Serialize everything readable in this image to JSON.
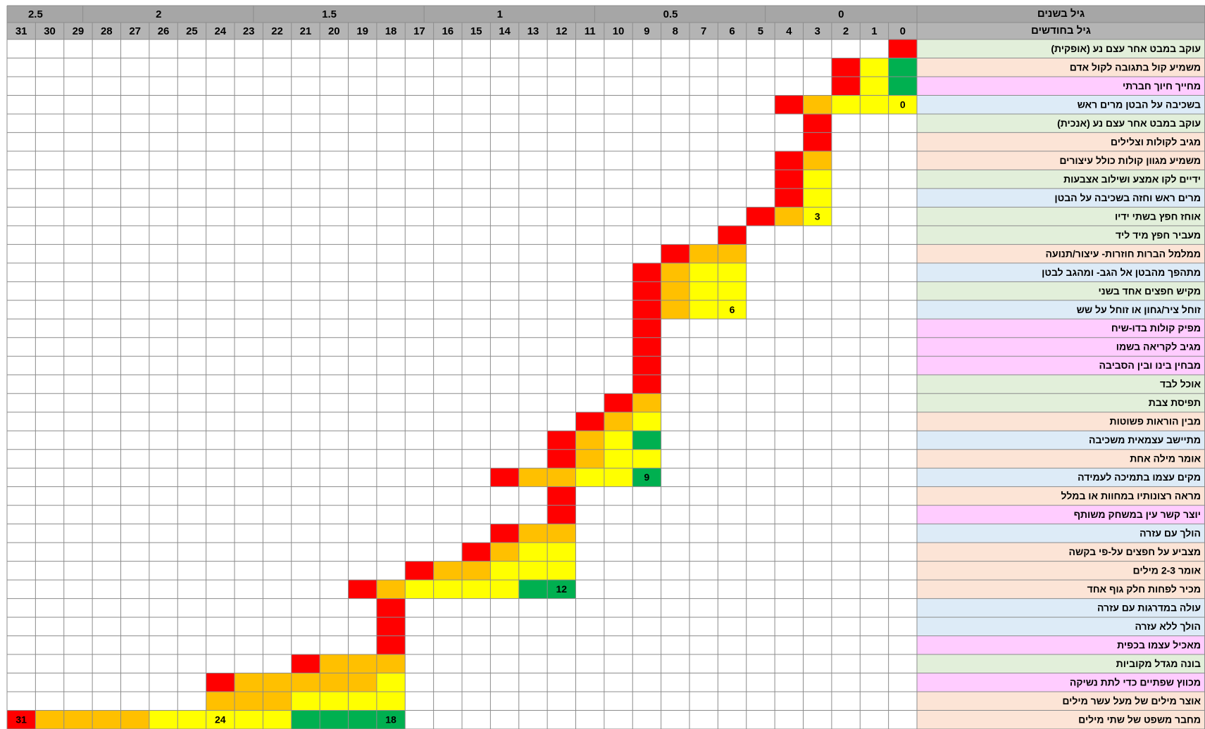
{
  "table": {
    "year_header": "גיל בשנים",
    "month_header": "גיל בחודשים",
    "years": [
      0,
      0.5,
      1,
      1.5,
      2,
      2.5
    ],
    "months": [
      0,
      1,
      2,
      3,
      4,
      5,
      6,
      7,
      8,
      9,
      10,
      11,
      12,
      13,
      14,
      15,
      16,
      17,
      18,
      19,
      20,
      21,
      22,
      23,
      24,
      25,
      26,
      27,
      28,
      29,
      30,
      31
    ],
    "header_color": "#a6a6a6",
    "subheader_color": "#b4b4b4",
    "rows": [
      {
        "label": "עוקב במבט אחר עצם נע (אופקית)",
        "color": "#e2efda",
        "cells": [
          {
            "month": 0,
            "color": "#ff0000"
          }
        ]
      },
      {
        "label": "משמיע קול בתגובה לקול אדם",
        "color": "#fce4d6",
        "cells": [
          {
            "month": 2,
            "color": "#ff0000"
          },
          {
            "month": 1,
            "color": "#ffff00"
          },
          {
            "month": 0,
            "color": "#00b050"
          }
        ]
      },
      {
        "label": "מחייך חיוך חברתי",
        "color": "#ffccff",
        "cells": [
          {
            "month": 2,
            "color": "#ff0000"
          },
          {
            "month": 1,
            "color": "#ffff00"
          },
          {
            "month": 0,
            "color": "#00b050"
          }
        ]
      },
      {
        "label": "בשכיבה על הבטן מרים ראש",
        "color": "#ddebf7",
        "cells": [
          {
            "month": 4,
            "color": "#ff0000"
          },
          {
            "month": 3,
            "color": "#ffc000"
          },
          {
            "month": 2,
            "color": "#ffff00"
          },
          {
            "month": 1,
            "color": "#ffff00"
          },
          {
            "month": 0,
            "color": "#ffff00",
            "label": "0"
          }
        ]
      },
      {
        "label": "עוקב במבט אחר עצם נע (אנכית)",
        "color": "#e2efda",
        "cells": [
          {
            "month": 3,
            "color": "#ff0000"
          }
        ]
      },
      {
        "label": "מגיב לקולות וצלילים",
        "color": "#fce4d6",
        "cells": [
          {
            "month": 3,
            "color": "#ff0000"
          }
        ]
      },
      {
        "label": "משמיע מגוון קולות כולל עיצורים",
        "color": "#fce4d6",
        "cells": [
          {
            "month": 4,
            "color": "#ff0000"
          },
          {
            "month": 3,
            "color": "#ffc000"
          }
        ]
      },
      {
        "label": "ידיים לקו אמצע ושילוב אצבעות",
        "color": "#e2efda",
        "cells": [
          {
            "month": 4,
            "color": "#ff0000"
          },
          {
            "month": 3,
            "color": "#ffff00"
          }
        ]
      },
      {
        "label": "מרים ראש וחזה בשכיבה על הבטן",
        "color": "#ddebf7",
        "cells": [
          {
            "month": 4,
            "color": "#ff0000"
          },
          {
            "month": 3,
            "color": "#ffff00"
          }
        ]
      },
      {
        "label": "אוחז חפץ בשתי ידיו",
        "color": "#e2efda",
        "cells": [
          {
            "month": 5,
            "color": "#ff0000"
          },
          {
            "month": 4,
            "color": "#ffc000"
          },
          {
            "month": 3,
            "color": "#ffff00",
            "label": "3"
          }
        ]
      },
      {
        "label": "מעביר חפץ מיד ליד",
        "color": "#e2efda",
        "cells": [
          {
            "month": 6,
            "color": "#ff0000"
          }
        ]
      },
      {
        "label": "ממלמל הברות חוזרות- עיצור/תנועה",
        "color": "#fce4d6",
        "cells": [
          {
            "month": 8,
            "color": "#ff0000"
          },
          {
            "month": 7,
            "color": "#ffc000"
          },
          {
            "month": 6,
            "color": "#ffc000"
          }
        ]
      },
      {
        "label": "מתהפך מהבטן אל הגב- ומהגב לבטן",
        "color": "#ddebf7",
        "cells": [
          {
            "month": 9,
            "color": "#ff0000"
          },
          {
            "month": 8,
            "color": "#ffc000"
          },
          {
            "month": 7,
            "color": "#ffff00"
          },
          {
            "month": 6,
            "color": "#ffff00"
          }
        ]
      },
      {
        "label": "מקיש חפצים אחד בשני",
        "color": "#e2efda",
        "cells": [
          {
            "month": 9,
            "color": "#ff0000"
          },
          {
            "month": 8,
            "color": "#ffc000"
          },
          {
            "month": 7,
            "color": "#ffff00"
          },
          {
            "month": 6,
            "color": "#ffff00"
          }
        ]
      },
      {
        "label": "זוחל ציר/גחון או זוחל על שש",
        "color": "#ddebf7",
        "cells": [
          {
            "month": 9,
            "color": "#ff0000"
          },
          {
            "month": 8,
            "color": "#ffc000"
          },
          {
            "month": 7,
            "color": "#ffff00"
          },
          {
            "month": 6,
            "color": "#ffff00",
            "label": "6"
          }
        ]
      },
      {
        "label": "מפיק קולות בדו-שיח",
        "color": "#ffccff",
        "cells": [
          {
            "month": 9,
            "color": "#ff0000"
          }
        ]
      },
      {
        "label": "מגיב לקריאה בשמו",
        "color": "#ffccff",
        "cells": [
          {
            "month": 9,
            "color": "#ff0000"
          }
        ]
      },
      {
        "label": "מבחין בינו ובין הסביבה",
        "color": "#ffccff",
        "cells": [
          {
            "month": 9,
            "color": "#ff0000"
          }
        ]
      },
      {
        "label": "אוכל לבד",
        "color": "#e2efda",
        "cells": [
          {
            "month": 9,
            "color": "#ff0000"
          }
        ]
      },
      {
        "label": "תפיסת צבת",
        "color": "#e2efda",
        "cells": [
          {
            "month": 10,
            "color": "#ff0000"
          },
          {
            "month": 9,
            "color": "#ffc000"
          }
        ]
      },
      {
        "label": "מבין הוראות פשוטות",
        "color": "#fce4d6",
        "cells": [
          {
            "month": 11,
            "color": "#ff0000"
          },
          {
            "month": 10,
            "color": "#ffc000"
          },
          {
            "month": 9,
            "color": "#ffff00"
          }
        ]
      },
      {
        "label": "מתיישב עצמאית משכיבה",
        "color": "#ddebf7",
        "cells": [
          {
            "month": 12,
            "color": "#ff0000"
          },
          {
            "month": 11,
            "color": "#ffc000"
          },
          {
            "month": 10,
            "color": "#ffff00"
          },
          {
            "month": 9,
            "color": "#00b050"
          }
        ]
      },
      {
        "label": "אומר מילה אחת",
        "color": "#fce4d6",
        "cells": [
          {
            "month": 12,
            "color": "#ff0000"
          },
          {
            "month": 11,
            "color": "#ffc000"
          },
          {
            "month": 10,
            "color": "#ffff00"
          },
          {
            "month": 9,
            "color": "#ffff00"
          }
        ]
      },
      {
        "label": "מקים עצמו בתמיכה לעמידה",
        "color": "#ddebf7",
        "cells": [
          {
            "month": 14,
            "color": "#ff0000"
          },
          {
            "month": 13,
            "color": "#ffc000"
          },
          {
            "month": 12,
            "color": "#ffc000"
          },
          {
            "month": 11,
            "color": "#ffff00"
          },
          {
            "month": 10,
            "color": "#ffff00"
          },
          {
            "month": 9,
            "color": "#00b050",
            "label": "9"
          }
        ]
      },
      {
        "label": "מראה רצונותיו במחוות או במלל",
        "color": "#fce4d6",
        "cells": [
          {
            "month": 12,
            "color": "#ff0000"
          }
        ]
      },
      {
        "label": "יוצר קשר עין במשחק משותף",
        "color": "#ffccff",
        "cells": [
          {
            "month": 12,
            "color": "#ff0000"
          }
        ]
      },
      {
        "label": "הולך עם עזרה",
        "color": "#ddebf7",
        "cells": [
          {
            "month": 14,
            "color": "#ff0000"
          },
          {
            "month": 13,
            "color": "#ffc000"
          },
          {
            "month": 12,
            "color": "#ffc000"
          }
        ]
      },
      {
        "label": "מצביע על חפצים על-פי בקשה",
        "color": "#fce4d6",
        "cells": [
          {
            "month": 15,
            "color": "#ff0000"
          },
          {
            "month": 14,
            "color": "#ffc000"
          },
          {
            "month": 13,
            "color": "#ffff00"
          },
          {
            "month": 12,
            "color": "#ffff00"
          }
        ]
      },
      {
        "label": "אומר 2-3 מילים",
        "color": "#fce4d6",
        "cells": [
          {
            "month": 17,
            "color": "#ff0000"
          },
          {
            "month": 16,
            "color": "#ffc000"
          },
          {
            "month": 15,
            "color": "#ffc000"
          },
          {
            "month": 14,
            "color": "#ffff00"
          },
          {
            "month": 13,
            "color": "#ffff00"
          },
          {
            "month": 12,
            "color": "#ffff00"
          }
        ]
      },
      {
        "label": "מכיר לפחות חלק גוף אחד",
        "color": "#fce4d6",
        "cells": [
          {
            "month": 19,
            "color": "#ff0000"
          },
          {
            "month": 18,
            "color": "#ffc000"
          },
          {
            "month": 17,
            "color": "#ffff00"
          },
          {
            "month": 16,
            "color": "#ffff00"
          },
          {
            "month": 15,
            "color": "#ffff00"
          },
          {
            "month": 14,
            "color": "#ffff00"
          },
          {
            "month": 13,
            "color": "#00b050"
          },
          {
            "month": 12,
            "color": "#00b050",
            "label": "12"
          }
        ]
      },
      {
        "label": "עולה במדרגות עם עזרה",
        "color": "#ddebf7",
        "cells": [
          {
            "month": 18,
            "color": "#ff0000"
          }
        ]
      },
      {
        "label": "הולך ללא עזרה",
        "color": "#ddebf7",
        "cells": [
          {
            "month": 18,
            "color": "#ff0000"
          }
        ]
      },
      {
        "label": "מאכיל עצמו בכפית",
        "color": "#ffccff",
        "cells": [
          {
            "month": 18,
            "color": "#ff0000"
          }
        ]
      },
      {
        "label": "בונה מגדל מקוביות",
        "color": "#e2efda",
        "cells": [
          {
            "month": 21,
            "color": "#ff0000"
          },
          {
            "month": 20,
            "color": "#ffc000"
          },
          {
            "month": 19,
            "color": "#ffc000"
          },
          {
            "month": 18,
            "color": "#ffc000"
          }
        ]
      },
      {
        "label": "מכווץ שפתיים כדי לתת נשיקה",
        "color": "#ffccff",
        "cells": [
          {
            "month": 24,
            "color": "#ff0000"
          },
          {
            "month": 23,
            "color": "#ffc000"
          },
          {
            "month": 22,
            "color": "#ffc000"
          },
          {
            "month": 21,
            "color": "#ffc000"
          },
          {
            "month": 20,
            "color": "#ffc000"
          },
          {
            "month": 19,
            "color": "#ffc000"
          },
          {
            "month": 18,
            "color": "#ffff00"
          }
        ]
      },
      {
        "label": "אוצר מילים של מעל עשר מילים",
        "color": "#fce4d6",
        "cells": [
          {
            "month": 24,
            "color": "#ffc000"
          },
          {
            "month": 23,
            "color": "#ffc000"
          },
          {
            "month": 22,
            "color": "#ffc000"
          },
          {
            "month": 21,
            "color": "#ffff00"
          },
          {
            "month": 20,
            "color": "#ffff00"
          },
          {
            "month": 19,
            "color": "#ffff00"
          },
          {
            "month": 18,
            "color": "#ffff00"
          }
        ]
      },
      {
        "label": "מחבר משפט של שתי מילים",
        "color": "#fce4d6",
        "cells": [
          {
            "month": 31,
            "color": "#ff0000",
            "label": "31"
          },
          {
            "month": 30,
            "color": "#ffc000"
          },
          {
            "month": 29,
            "color": "#ffc000"
          },
          {
            "month": 28,
            "color": "#ffc000"
          },
          {
            "month": 27,
            "color": "#ffc000"
          },
          {
            "month": 26,
            "color": "#ffff00"
          },
          {
            "month": 25,
            "color": "#ffff00"
          },
          {
            "month": 24,
            "color": "#ffff00",
            "label": "24"
          },
          {
            "month": 23,
            "color": "#ffff00"
          },
          {
            "month": 22,
            "color": "#ffff00"
          },
          {
            "month": 21,
            "color": "#00b050"
          },
          {
            "month": 20,
            "color": "#00b050"
          },
          {
            "month": 19,
            "color": "#00b050"
          },
          {
            "month": 18,
            "color": "#00b050",
            "label": "18"
          }
        ]
      }
    ]
  }
}
